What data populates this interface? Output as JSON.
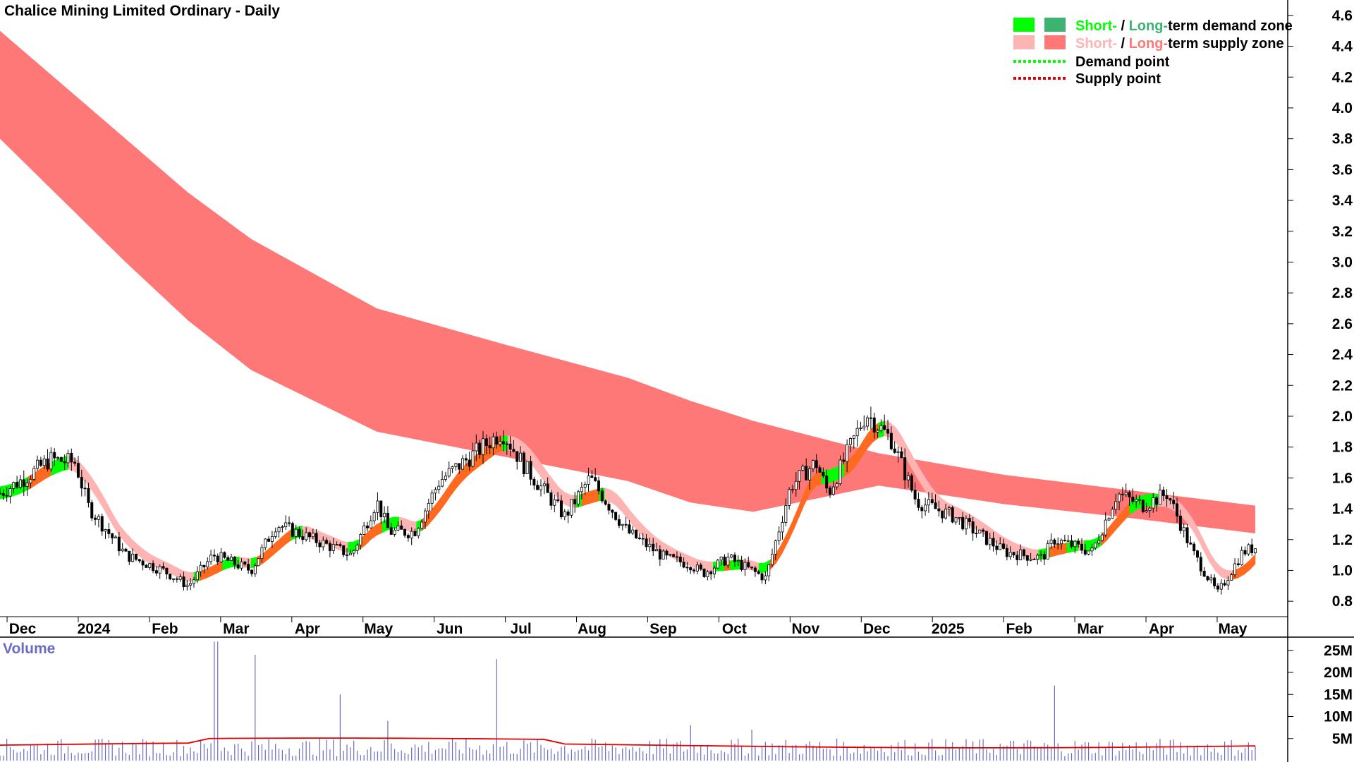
{
  "chart_data": {
    "type": "candlestick",
    "title": "Chalice Mining Limited Ordinary - Daily",
    "ylim": [
      0.7,
      4.7
    ],
    "y_ticks": [
      "4.6",
      "4.4",
      "4.2",
      "4.0",
      "3.8",
      "3.6",
      "3.4",
      "3.2",
      "3.0",
      "2.8",
      "2.6",
      "2.4",
      "2.2",
      "2.0",
      "1.8",
      "1.6",
      "1.4",
      "1.2",
      "1.0",
      "0.8"
    ],
    "x_months": [
      "Dec",
      "2024",
      "Feb",
      "Mar",
      "Apr",
      "May",
      "Jun",
      "Jul",
      "Aug",
      "Sep",
      "Oct",
      "Nov",
      "Dec",
      "2025",
      "Feb",
      "Mar",
      "Apr",
      "May"
    ],
    "legend": {
      "placement": "top-right",
      "short": "Short-",
      "sep": " / ",
      "long": "Long-",
      "demand_zone": "term demand zone",
      "supply_zone": "term supply zone",
      "demand_point": "Demand point",
      "supply_point": "Supply point"
    },
    "colors": {
      "long_supply": "#ff7878",
      "short_supply": "#ffb4b4",
      "short_demand": "#00ff00",
      "long_demand": "#3cb371",
      "overlap": "#ff6a20",
      "volume": "#6b6bbf",
      "volume_avg": "#e00000"
    },
    "long_supply_zone": {
      "x": [
        0,
        0.05,
        0.1,
        0.15,
        0.2,
        0.3,
        0.4,
        0.5,
        0.55,
        0.6,
        0.7,
        0.8,
        0.9,
        1.0
      ],
      "upper": [
        4.5,
        4.15,
        3.8,
        3.45,
        3.15,
        2.7,
        2.47,
        2.25,
        2.1,
        1.97,
        1.76,
        1.62,
        1.52,
        1.42
      ],
      "lower": [
        3.8,
        3.4,
        3.0,
        2.62,
        2.3,
        1.9,
        1.74,
        1.58,
        1.44,
        1.38,
        1.55,
        1.43,
        1.34,
        1.24
      ]
    },
    "price_series": {
      "x": [
        0,
        0.02,
        0.04,
        0.06,
        0.07,
        0.1,
        0.13,
        0.15,
        0.17,
        0.2,
        0.22,
        0.25,
        0.28,
        0.3,
        0.31,
        0.33,
        0.35,
        0.4,
        0.42,
        0.45,
        0.47,
        0.5,
        0.53,
        0.55,
        0.56,
        0.58,
        0.61,
        0.63,
        0.65,
        0.66,
        0.69,
        0.71,
        0.73,
        0.76,
        0.8,
        0.83,
        0.84,
        0.87,
        0.89,
        0.91,
        0.93,
        0.95,
        0.97,
        0.99,
        1.0
      ],
      "close": [
        1.5,
        1.6,
        1.72,
        1.7,
        1.42,
        1.1,
        1.0,
        0.9,
        1.1,
        1.0,
        1.3,
        1.2,
        1.1,
        1.45,
        1.25,
        1.25,
        1.58,
        1.9,
        1.65,
        1.35,
        1.6,
        1.25,
        1.08,
        1.04,
        0.98,
        1.08,
        0.95,
        1.55,
        1.7,
        1.5,
        2.02,
        1.85,
        1.45,
        1.35,
        1.12,
        1.08,
        1.2,
        1.12,
        1.5,
        1.42,
        1.5,
        1.12,
        0.85,
        1.12,
        1.15
      ]
    },
    "volume": {
      "label": "Volume",
      "y_ticks": [
        "25M",
        "20M",
        "15M",
        "10M",
        "5M"
      ],
      "ylim": [
        0,
        28
      ],
      "spikes": [
        {
          "x": 0.172,
          "v": 27
        },
        {
          "x": 0.204,
          "v": 24
        },
        {
          "x": 0.396,
          "v": 23
        },
        {
          "x": 0.27,
          "v": 15
        },
        {
          "x": 0.84,
          "v": 17
        },
        {
          "x": 0.55,
          "v": 8
        },
        {
          "x": 0.6,
          "v": 7
        },
        {
          "x": 0.31,
          "v": 9
        }
      ],
      "avg": 3.5
    }
  }
}
